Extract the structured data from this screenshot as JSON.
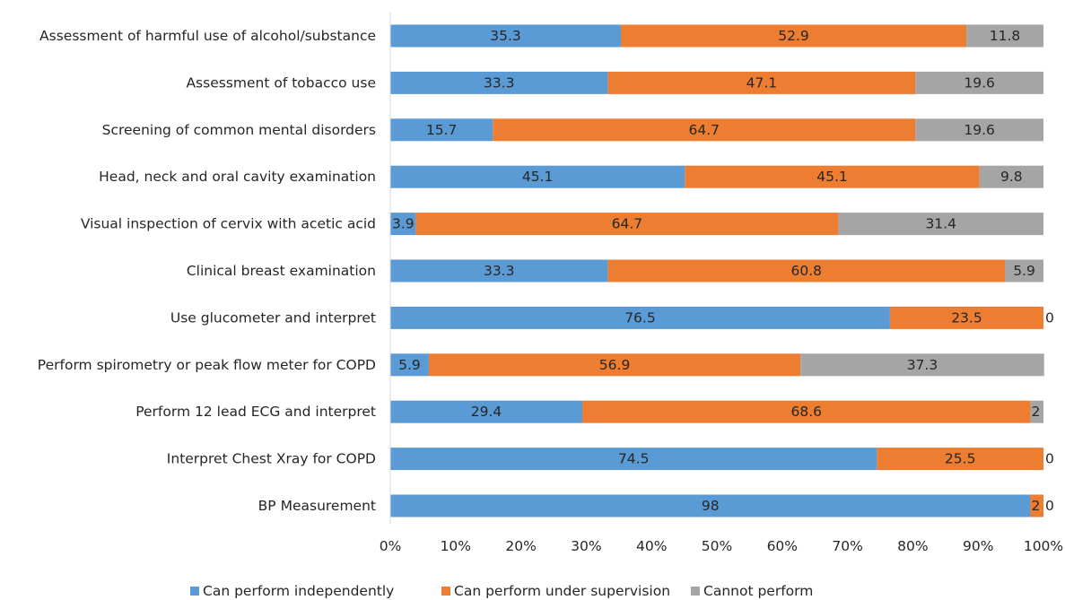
{
  "chart_data": {
    "type": "bar",
    "orientation": "horizontal",
    "stacked": "percent",
    "categories": [
      "Assessment of harmful use of alcohol/substance",
      "Assessment of tobacco use",
      "Screening of common mental disorders",
      "Head, neck and oral cavity examination",
      "Visual inspection of cervix with acetic acid",
      "Clinical breast examination",
      "Use glucometer and interpret",
      "Perform spirometry or peak flow meter for COPD",
      "Perform 12 lead ECG and interpret",
      "Interpret Chest Xray for COPD",
      "BP Measurement"
    ],
    "series": [
      {
        "name": "Can perform independently",
        "color": "#5B9BD5",
        "values": [
          35.3,
          33.3,
          15.7,
          45.1,
          3.9,
          33.3,
          76.5,
          5.9,
          29.4,
          74.5,
          98
        ],
        "labels": [
          "35.3",
          "33.3",
          "15.7",
          "45.1",
          "3.9",
          "33.3",
          "76.5",
          "5.9",
          "29.4",
          "74.5",
          "98"
        ]
      },
      {
        "name": "Can perform under supervision",
        "color": "#ED7D31",
        "values": [
          52.9,
          47.1,
          64.7,
          45.1,
          64.7,
          60.8,
          23.5,
          56.9,
          68.6,
          25.5,
          2
        ],
        "labels": [
          "52.9",
          "47.1",
          "64.7",
          "45.1",
          "64.7",
          "60.8",
          "23.5",
          "56.9",
          "68.6",
          "25.5",
          "2"
        ]
      },
      {
        "name": "Cannot perform",
        "color": "#A5A5A5",
        "values": [
          11.8,
          19.6,
          19.6,
          9.8,
          31.4,
          5.9,
          0,
          37.3,
          2,
          0,
          0
        ],
        "labels": [
          "11.8",
          "19.6",
          "19.6",
          "9.8",
          "31.4",
          "5.9",
          "0",
          "37.3",
          "2",
          "0",
          "0"
        ]
      }
    ],
    "xticks": [
      "0%",
      "10%",
      "20%",
      "30%",
      "40%",
      "50%",
      "60%",
      "70%",
      "80%",
      "90%",
      "100%"
    ],
    "xlim": [
      0,
      100
    ],
    "title": "",
    "xlabel": "",
    "ylabel": "",
    "grid": false,
    "legend": "bottom"
  }
}
